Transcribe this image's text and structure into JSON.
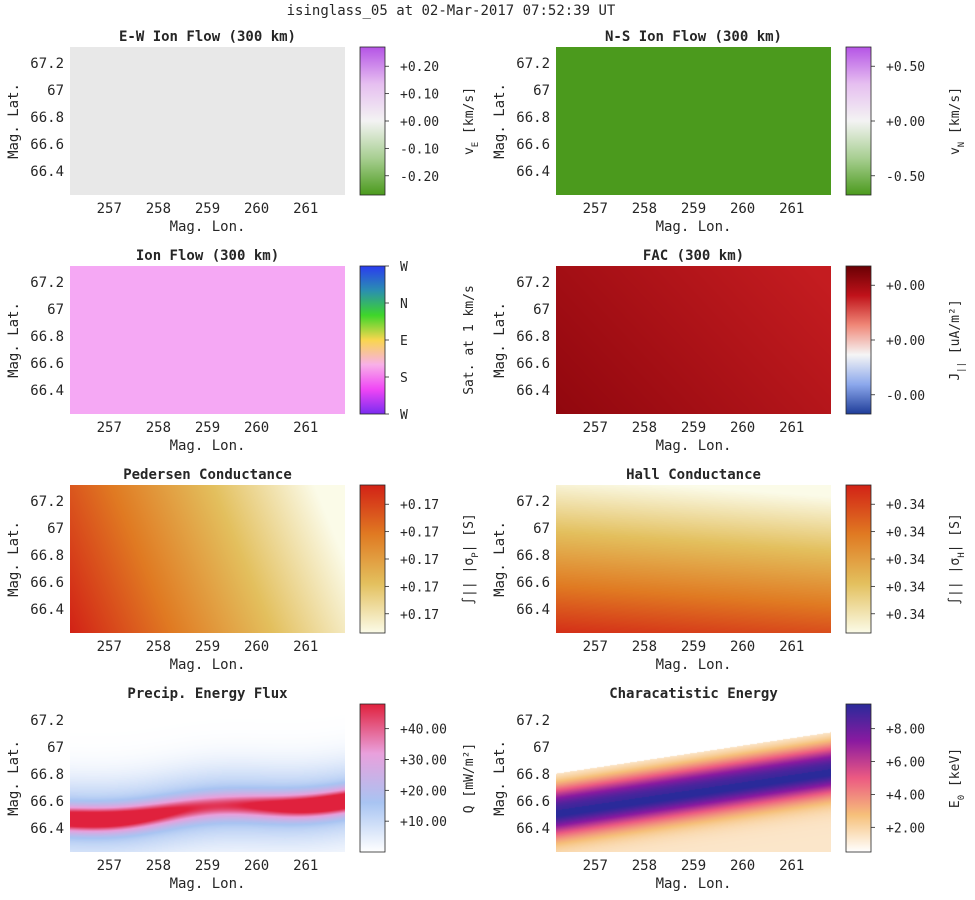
{
  "figure_title": "isinglass_05 at 02-Mar-2017 07:52:39 UT",
  "chart_data": [
    {
      "type": "heatmap",
      "title": "E-W Ion Flow (300 km)",
      "xlabel": "Mag. Lon.",
      "ylabel": "Mag. Lat.",
      "xticks": [
        "257",
        "258",
        "259",
        "260",
        "261"
      ],
      "yticks": [
        "67.2",
        "67",
        "66.8",
        "66.6",
        "66.4"
      ],
      "xlim": [
        256.2,
        261.8
      ],
      "ylim": [
        66.22,
        67.32
      ],
      "field": "uniform",
      "colors": [
        "#e8e8e8"
      ],
      "colormap": [
        "#4b9a1d",
        "#a8cf92",
        "#f3f3f3",
        "#e6bff0",
        "#b554e6"
      ],
      "colorbar_label": "v_E [km/s]",
      "colorbar_label_main": "v",
      "colorbar_label_sub": "E",
      "colorbar_label_unit": " [km/s]",
      "colorbar_ticks": [
        "+0.20",
        "+0.10",
        "+0.00",
        "-0.10",
        "-0.20"
      ]
    },
    {
      "type": "heatmap",
      "title": "N-S Ion Flow (300 km)",
      "xlabel": "Mag. Lon.",
      "ylabel": "Mag. Lat.",
      "xticks": [
        "257",
        "258",
        "259",
        "260",
        "261"
      ],
      "yticks": [
        "67.2",
        "67",
        "66.8",
        "66.6",
        "66.4"
      ],
      "xlim": [
        256.2,
        261.8
      ],
      "ylim": [
        66.22,
        67.32
      ],
      "field": "uniform",
      "colors": [
        "#4b9a1d"
      ],
      "colormap": [
        "#4b9a1d",
        "#a8cf92",
        "#f3f3f3",
        "#e6bff0",
        "#b554e6"
      ],
      "colorbar_label": "v_N [km/s]",
      "colorbar_label_main": "v",
      "colorbar_label_sub": "N",
      "colorbar_label_unit": " [km/s]",
      "colorbar_ticks": [
        "+0.50",
        "+0.00",
        "-0.50"
      ]
    },
    {
      "type": "heatmap",
      "title": "Ion Flow (300 km)",
      "xlabel": "Mag. Lon.",
      "ylabel": "Mag. Lat.",
      "xticks": [
        "257",
        "258",
        "259",
        "260",
        "261"
      ],
      "yticks": [
        "67.2",
        "67",
        "66.8",
        "66.6",
        "66.4"
      ],
      "xlim": [
        256.2,
        261.8
      ],
      "ylim": [
        66.22,
        67.32
      ],
      "field": "uniform",
      "colors": [
        "#f5a8f4"
      ],
      "colormap": [
        "#7a2cf0",
        "#f046f5",
        "#f8b0e8",
        "#f9d64e",
        "#3ed62a",
        "#2a8fb0",
        "#2a3cf0"
      ],
      "colorbar_label": "Sat. at 1 km/s",
      "colorbar_label_main": "Sat. at 1 km/s",
      "colorbar_label_sub": "",
      "colorbar_label_unit": "",
      "colorbar_ticks": [
        "W",
        "N",
        "E",
        "S",
        "W"
      ]
    },
    {
      "type": "heatmap",
      "title": "FAC (300 km)",
      "xlabel": "Mag. Lon.",
      "ylabel": "Mag. Lat.",
      "xticks": [
        "257",
        "258",
        "259",
        "260",
        "261"
      ],
      "yticks": [
        "67.2",
        "67",
        "66.8",
        "66.6",
        "66.4"
      ],
      "xlim": [
        256.2,
        261.8
      ],
      "ylim": [
        66.22,
        67.32
      ],
      "field": "fac",
      "colors": [
        "#800008",
        "#c41c20"
      ],
      "colormap": [
        "#1f3d99",
        "#8ca8ec",
        "#f5f5f5",
        "#f08878",
        "#c0121a",
        "#6a0004"
      ],
      "colorbar_label": "J_|| [uA/m^2]",
      "colorbar_label_main": "J",
      "colorbar_label_sub": "||",
      "colorbar_label_unit": " [uA/m²]",
      "colorbar_ticks": [
        "+0.00",
        "+0.00",
        "-0.00"
      ]
    },
    {
      "type": "heatmap",
      "title": "Pedersen Conductance",
      "xlabel": "Mag. Lon.",
      "ylabel": "Mag. Lat.",
      "xticks": [
        "257",
        "258",
        "259",
        "260",
        "261"
      ],
      "yticks": [
        "67.2",
        "67",
        "66.8",
        "66.6",
        "66.4"
      ],
      "xlim": [
        256.2,
        261.8
      ],
      "ylim": [
        66.22,
        67.32
      ],
      "field": "pedersen",
      "colors": [
        "#fbfbe8",
        "#e3c05e",
        "#e07a22",
        "#d22216"
      ],
      "colormap": [
        "#fbfbe8",
        "#e3c05e",
        "#e07a22",
        "#d22216"
      ],
      "colorbar_label": "∫|| σP [S]",
      "colorbar_label_main": "∫|| |σ",
      "colorbar_label_sub": "P",
      "colorbar_label_unit": "| [S]",
      "colorbar_ticks": [
        "+0.17",
        "+0.17",
        "+0.17",
        "+0.17",
        "+0.17"
      ]
    },
    {
      "type": "heatmap",
      "title": "Hall Conductance",
      "xlabel": "Mag. Lon.",
      "ylabel": "Mag. Lat.",
      "xticks": [
        "257",
        "258",
        "259",
        "260",
        "261"
      ],
      "yticks": [
        "67.2",
        "67",
        "66.8",
        "66.6",
        "66.4"
      ],
      "xlim": [
        256.2,
        261.8
      ],
      "ylim": [
        66.22,
        67.32
      ],
      "field": "hall",
      "colors": [
        "#fbfbe8",
        "#e3c05e",
        "#e07a22",
        "#d22216"
      ],
      "colormap": [
        "#fbfbe8",
        "#e3c05e",
        "#e07a22",
        "#d22216"
      ],
      "colorbar_label": "∫|| σH [S]",
      "colorbar_label_main": "∫|| |σ",
      "colorbar_label_sub": "H",
      "colorbar_label_unit": "| [S]",
      "colorbar_ticks": [
        "+0.34",
        "+0.34",
        "+0.34",
        "+0.34",
        "+0.34"
      ]
    },
    {
      "type": "heatmap",
      "title": "Precip. Energy Flux",
      "xlabel": "Mag. Lon.",
      "ylabel": "Mag. Lat.",
      "xticks": [
        "257",
        "258",
        "259",
        "260",
        "261"
      ],
      "yticks": [
        "67.2",
        "67",
        "66.8",
        "66.6",
        "66.4"
      ],
      "xlim": [
        256.2,
        261.8
      ],
      "ylim": [
        66.22,
        67.32
      ],
      "field": "flux",
      "colors": [
        "#ffffff",
        "#a8c4f2",
        "#e9a0dc",
        "#e0213d"
      ],
      "colormap": [
        "#ffffff",
        "#a8c4f2",
        "#e9a0dc",
        "#e0213d"
      ],
      "colorbar_label": "Q [mW/m^2]",
      "colorbar_label_main": "Q",
      "colorbar_label_sub": "",
      "colorbar_label_unit": " [mW/m²]",
      "colorbar_ticks": [
        "+40.00",
        "+30.00",
        "+20.00",
        "+10.00"
      ],
      "colorbar_range": [
        0,
        48
      ]
    },
    {
      "type": "heatmap",
      "title": "Characatistic Energy",
      "xlabel": "Mag. Lon.",
      "ylabel": "Mag. Lat.",
      "xticks": [
        "257",
        "258",
        "259",
        "260",
        "261"
      ],
      "yticks": [
        "67.2",
        "67",
        "66.8",
        "66.6",
        "66.4"
      ],
      "xlim": [
        256.2,
        261.8
      ],
      "ylim": [
        66.22,
        67.32
      ],
      "field": "energy",
      "colors": [
        "#ffffff",
        "#f6c07a",
        "#ec5a82",
        "#8a1aa0",
        "#2a2a9a"
      ],
      "colormap": [
        "#ffffff",
        "#f6c07a",
        "#ec5a82",
        "#8a1aa0",
        "#2a2a9a"
      ],
      "colorbar_label": "E_0 [keV]",
      "colorbar_label_main": "E",
      "colorbar_label_sub": "0",
      "colorbar_label_unit": " [keV]",
      "colorbar_ticks": [
        "+8.00",
        "+6.00",
        "+4.00",
        "+2.00"
      ],
      "colorbar_range": [
        0.5,
        9.5
      ]
    }
  ]
}
